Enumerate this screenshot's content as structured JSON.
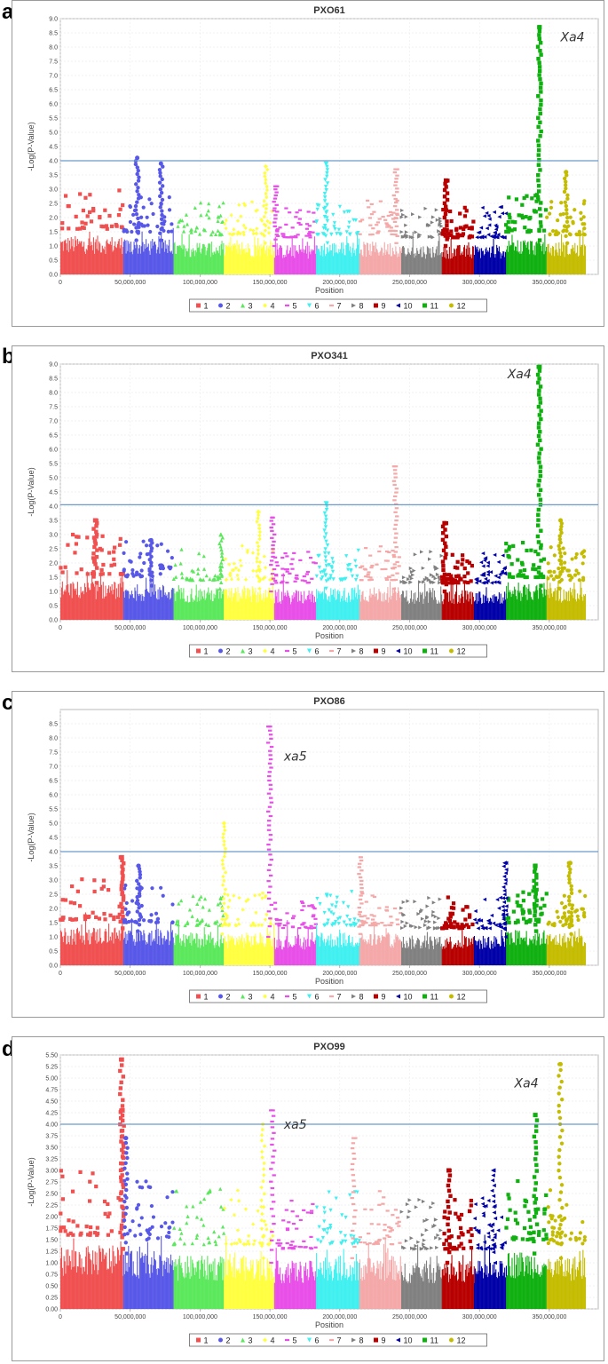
{
  "chart_data": [
    {
      "panel": "a",
      "type": "scatter",
      "title": "PXO61",
      "xlabel": "Position",
      "ylabel": "-Log(P-Value)",
      "ylim": [
        0,
        9.0
      ],
      "ytick_step": 0.5,
      "yticks": [
        "0.0",
        "0.5",
        "1.0",
        "1.5",
        "2.0",
        "2.5",
        "3.0",
        "3.5",
        "4.0",
        "4.5",
        "5.0",
        "5.5",
        "6.0",
        "6.5",
        "7.0",
        "7.5",
        "8.0",
        "8.5",
        "9.0"
      ],
      "threshold": 4.0,
      "annotations": [
        {
          "text": "Xa4",
          "x": 358000000,
          "y": 8.2
        }
      ],
      "peaks": [
        {
          "chr": 2,
          "pos": 55000000,
          "y": 4.1
        },
        {
          "chr": 2,
          "pos": 72000000,
          "y": 3.9
        },
        {
          "chr": 4,
          "pos": 147000000,
          "y": 3.8
        },
        {
          "chr": 5,
          "pos": 154000000,
          "y": 3.1
        },
        {
          "chr": 6,
          "pos": 190000000,
          "y": 3.9
        },
        {
          "chr": 7,
          "pos": 240000000,
          "y": 3.7
        },
        {
          "chr": 9,
          "pos": 276000000,
          "y": 3.3
        },
        {
          "chr": 11,
          "pos": 343000000,
          "y": 8.7
        },
        {
          "chr": 12,
          "pos": 362000000,
          "y": 3.6
        }
      ]
    },
    {
      "panel": "b",
      "type": "scatter",
      "title": "PXO341",
      "xlabel": "Position",
      "ylabel": "-Log(P-Value)",
      "ylim": [
        0,
        9.0
      ],
      "ytick_step": 0.5,
      "yticks": [
        "0.0",
        "0.5",
        "1.0",
        "1.5",
        "2.0",
        "2.5",
        "3.0",
        "3.5",
        "4.0",
        "4.5",
        "5.0",
        "5.5",
        "6.0",
        "6.5",
        "7.0",
        "7.5",
        "8.0",
        "8.5",
        "9.0"
      ],
      "threshold": 4.05,
      "annotations": [
        {
          "text": "Xa4",
          "x": 320000000,
          "y": 8.5
        }
      ],
      "peaks": [
        {
          "chr": 1,
          "pos": 25000000,
          "y": 3.5
        },
        {
          "chr": 2,
          "pos": 65000000,
          "y": 2.8
        },
        {
          "chr": 3,
          "pos": 115000000,
          "y": 3.0
        },
        {
          "chr": 4,
          "pos": 142000000,
          "y": 3.8
        },
        {
          "chr": 5,
          "pos": 152000000,
          "y": 3.6
        },
        {
          "chr": 6,
          "pos": 190000000,
          "y": 4.1
        },
        {
          "chr": 7,
          "pos": 240000000,
          "y": 5.4
        },
        {
          "chr": 9,
          "pos": 275000000,
          "y": 3.4
        },
        {
          "chr": 11,
          "pos": 343000000,
          "y": 8.9
        },
        {
          "chr": 12,
          "pos": 358000000,
          "y": 3.5
        }
      ]
    },
    {
      "panel": "c",
      "type": "scatter",
      "title": "PXO86",
      "xlabel": "Position",
      "ylabel": "-Log(P-Value)",
      "ylim": [
        0,
        9.0
      ],
      "ytick_step": 0.5,
      "yticks": [
        "0.0",
        "0.5",
        "1.0",
        "1.5",
        "2.0",
        "2.5",
        "3.0",
        "3.5",
        "4.0",
        "4.5",
        "5.0",
        "5.5",
        "6.0",
        "6.5",
        "7.0",
        "7.5",
        "8.0",
        "8.5"
      ],
      "threshold": 4.0,
      "annotations": [
        {
          "text": "xa5",
          "x": 160000000,
          "y": 7.2
        }
      ],
      "peaks": [
        {
          "chr": 1,
          "pos": 44000000,
          "y": 3.8
        },
        {
          "chr": 2,
          "pos": 56000000,
          "y": 3.5
        },
        {
          "chr": 4,
          "pos": 117000000,
          "y": 5.0
        },
        {
          "chr": 5,
          "pos": 150000000,
          "y": 8.4
        },
        {
          "chr": 7,
          "pos": 215000000,
          "y": 3.8
        },
        {
          "chr": 10,
          "pos": 318000000,
          "y": 3.6
        },
        {
          "chr": 11,
          "pos": 340000000,
          "y": 3.5
        },
        {
          "chr": 12,
          "pos": 365000000,
          "y": 3.6
        }
      ]
    },
    {
      "panel": "d",
      "type": "scatter",
      "title": "PXO99",
      "xlabel": "Position",
      "ylabel": "-Log(P-Value)",
      "ylim": [
        0,
        5.5
      ],
      "ytick_step": 0.25,
      "yticks": [
        "0.00",
        "0.25",
        "0.50",
        "0.75",
        "1.00",
        "1.25",
        "1.50",
        "1.75",
        "2.00",
        "2.25",
        "2.50",
        "2.75",
        "3.00",
        "3.25",
        "3.50",
        "3.75",
        "4.00",
        "4.25",
        "4.50",
        "4.75",
        "5.00",
        "5.25",
        "5.50"
      ],
      "threshold": 4.0,
      "annotations": [
        {
          "text": "xa5",
          "x": 160000000,
          "y": 3.9
        },
        {
          "text": "Xa4",
          "x": 325000000,
          "y": 4.8
        }
      ],
      "peaks": [
        {
          "chr": 1,
          "pos": 44000000,
          "y": 5.4
        },
        {
          "chr": 1,
          "pos": 44500000,
          "y": 4.3
        },
        {
          "chr": 2,
          "pos": 47000000,
          "y": 3.7
        },
        {
          "chr": 5,
          "pos": 152000000,
          "y": 4.3
        },
        {
          "chr": 4,
          "pos": 145000000,
          "y": 4.0
        },
        {
          "chr": 7,
          "pos": 210000000,
          "y": 3.7
        },
        {
          "chr": 9,
          "pos": 278000000,
          "y": 3.0
        },
        {
          "chr": 10,
          "pos": 310000000,
          "y": 3.0
        },
        {
          "chr": 11,
          "pos": 340000000,
          "y": 4.2
        },
        {
          "chr": 12,
          "pos": 358000000,
          "y": 5.3
        }
      ]
    }
  ],
  "panel_letters": [
    "a",
    "b",
    "c",
    "d"
  ],
  "xaxis": {
    "xlim": [
      0,
      385000000
    ],
    "tick_values": [
      0,
      50000000,
      100000000,
      150000000,
      200000000,
      250000000,
      300000000,
      350000000
    ],
    "tick_labels": [
      "0",
      "50,000,000",
      "100,000,000",
      "150,000,000",
      "200,000,000",
      "250,000,000",
      "300,000,000",
      "350,000,000"
    ]
  },
  "chromosomes": [
    {
      "id": "1",
      "start": 0,
      "end": 45000000,
      "color": "#f05050",
      "marker": "square",
      "base": 1.3
    },
    {
      "id": "2",
      "start": 45000000,
      "end": 81000000,
      "color": "#5858e8",
      "marker": "circle",
      "base": 1.2
    },
    {
      "id": "3",
      "start": 81000000,
      "end": 117000000,
      "color": "#5ce85c",
      "marker": "triangle-up",
      "base": 1.1
    },
    {
      "id": "4",
      "start": 117000000,
      "end": 153000000,
      "color": "#ffff40",
      "marker": "diamond",
      "base": 1.1
    },
    {
      "id": "5",
      "start": 153000000,
      "end": 183000000,
      "color": "#e84ee8",
      "marker": "dash",
      "base": 1.0
    },
    {
      "id": "6",
      "start": 183000000,
      "end": 214000000,
      "color": "#40f0f0",
      "marker": "triangle-down",
      "base": 1.1
    },
    {
      "id": "7",
      "start": 214000000,
      "end": 244000000,
      "color": "#f4a8a8",
      "marker": "dash",
      "base": 1.1
    },
    {
      "id": "8",
      "start": 244000000,
      "end": 273000000,
      "color": "#808080",
      "marker": "triangle-right",
      "base": 1.0
    },
    {
      "id": "9",
      "start": 273000000,
      "end": 296000000,
      "color": "#b80000",
      "marker": "square",
      "base": 1.0
    },
    {
      "id": "10",
      "start": 296000000,
      "end": 319000000,
      "color": "#0000a8",
      "marker": "triangle-left",
      "base": 1.0
    },
    {
      "id": "11",
      "start": 319000000,
      "end": 348000000,
      "color": "#10b010",
      "marker": "square",
      "base": 1.2
    },
    {
      "id": "12",
      "start": 348000000,
      "end": 376000000,
      "color": "#c4bc00",
      "marker": "circle",
      "base": 1.1
    }
  ],
  "threshold_color": "#6c9ccc"
}
